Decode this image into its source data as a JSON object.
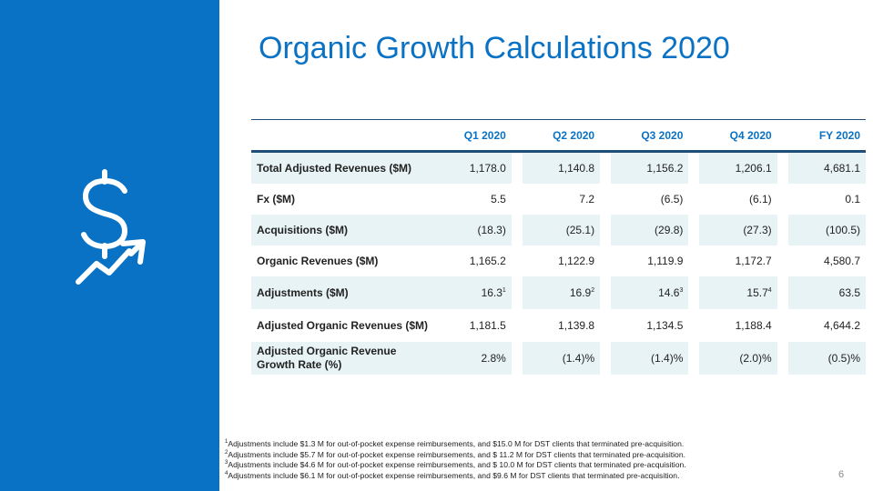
{
  "title": "Organic Growth Calculations 2020",
  "icon": "dollar-growth-arrow-icon",
  "colors": {
    "sidebar": "#0a72c4",
    "title": "#0a72c4",
    "header_text": "#0a72c4",
    "row_shade": "#e8f3f6",
    "rule": "#1f4e79"
  },
  "table": {
    "headers": [
      "",
      "Q1 2020",
      "Q2 2020",
      "Q3 2020",
      "Q4 2020",
      "FY 2020"
    ],
    "rows": [
      {
        "label": "Total Adjusted Revenues ($M)",
        "values": [
          "1,178.0",
          "1,140.8",
          "1,156.2",
          "1,206.1",
          "4,681.1"
        ],
        "sups": [
          "",
          "",
          "",
          "",
          ""
        ]
      },
      {
        "label": "Fx ($M)",
        "values": [
          "5.5",
          "7.2",
          "(6.5)",
          "(6.1)",
          "0.1"
        ],
        "sups": [
          "",
          "",
          "",
          "",
          ""
        ]
      },
      {
        "label": "Acquisitions ($M)",
        "values": [
          "(18.3)",
          "(25.1)",
          "(29.8)",
          "(27.3)",
          "(100.5)"
        ],
        "sups": [
          "",
          "",
          "",
          "",
          ""
        ]
      },
      {
        "label": "Organic Revenues ($M)",
        "values": [
          "1,165.2",
          "1,122.9",
          "1,119.9",
          "1,172.7",
          "4,580.7"
        ],
        "sups": [
          "",
          "",
          "",
          "",
          ""
        ]
      },
      {
        "label": "Adjustments ($M)",
        "values": [
          "16.3",
          "16.9",
          "14.6",
          "15.7",
          "63.5"
        ],
        "sups": [
          "1",
          "2",
          "3",
          "4",
          ""
        ]
      },
      {
        "label": "Adjusted Organic Revenues ($M)",
        "values": [
          "1,181.5",
          "1,139.8",
          "1,134.5",
          "1,188.4",
          "4,644.2"
        ],
        "sups": [
          "",
          "",
          "",
          "",
          ""
        ]
      },
      {
        "label": "Adjusted Organic Revenue Growth Rate (%)",
        "values": [
          "2.8%",
          "(1.4)%",
          "(1.4)%",
          "(2.0)%",
          "(0.5)%"
        ],
        "sups": [
          "",
          "",
          "",
          "",
          ""
        ]
      }
    ]
  },
  "footnotes": [
    {
      "mark": "1",
      "text": "Adjustments include $1.3 M for out-of-pocket expense reimbursements, and $15.0 M for DST clients that terminated pre-acquisition."
    },
    {
      "mark": "2",
      "text": "Adjustments include $5.7 M for out-of-pocket expense reimbursements, and $ 11.2 M for DST clients that terminated pre-acquisition."
    },
    {
      "mark": "3",
      "text": "Adjustments include $4.6 M for out-of-pocket expense reimbursements, and $ 10.0 M for DST clients that terminated pre-acquisition."
    },
    {
      "mark": "4",
      "text": "Adjustments include $6.1 M for out-of-pocket expense reimbursements, and $9.6 M for DST clients that terminated pre-acquisition."
    }
  ],
  "page_number": "6"
}
